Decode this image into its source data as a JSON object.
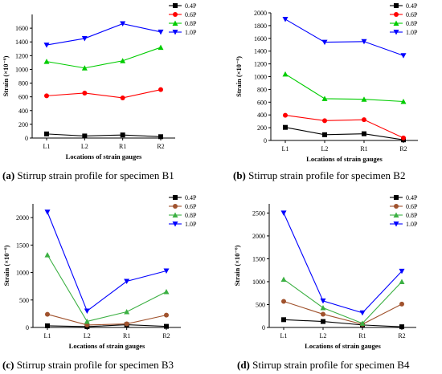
{
  "chart_data": [
    {
      "type": "line",
      "caption_letter": "(a)",
      "caption_text": " Stirrup strain profile for specimen B1",
      "xlabel": "Locations of strain gauges",
      "ylabel": "Strain (×10⁻⁶)",
      "categories": [
        "L1",
        "L2",
        "R1",
        "R2"
      ],
      "ylim": [
        0,
        1800
      ],
      "yticks": [
        0,
        200,
        400,
        600,
        800,
        1000,
        1200,
        1400,
        1600
      ],
      "legend_position": "top-right",
      "series": [
        {
          "name": "0.4P",
          "color": "#000000",
          "marker": "square",
          "values": [
            60,
            30,
            45,
            20
          ]
        },
        {
          "name": "0.6P",
          "color": "#ff0000",
          "marker": "circle",
          "values": [
            615,
            655,
            585,
            705
          ]
        },
        {
          "name": "0.8P",
          "color": "#00cc00",
          "marker": "triangle-up",
          "values": [
            1115,
            1020,
            1125,
            1320
          ]
        },
        {
          "name": "1.0P",
          "color": "#0000ff",
          "marker": "triangle-down",
          "values": [
            1355,
            1450,
            1665,
            1545
          ]
        }
      ]
    },
    {
      "type": "line",
      "caption_letter": "(b)",
      "caption_text": " Stirrup strain profile for specimen B2",
      "xlabel": "Locations of strain gauges",
      "ylabel": "Strain (×10⁻⁶)",
      "categories": [
        "L1",
        "L2",
        "R1",
        "R2"
      ],
      "ylim": [
        0,
        2000
      ],
      "yticks": [
        0,
        200,
        400,
        600,
        800,
        1000,
        1200,
        1400,
        1600,
        1800,
        2000
      ],
      "legend_position": "top-right",
      "series": [
        {
          "name": "0.4P",
          "color": "#000000",
          "marker": "square",
          "values": [
            205,
            90,
            105,
            10
          ]
        },
        {
          "name": "0.6P",
          "color": "#ff0000",
          "marker": "circle",
          "values": [
            395,
            310,
            325,
            40
          ]
        },
        {
          "name": "0.8P",
          "color": "#00cc00",
          "marker": "triangle-up",
          "values": [
            1040,
            655,
            645,
            610
          ]
        },
        {
          "name": "1.0P",
          "color": "#0000ff",
          "marker": "triangle-down",
          "values": [
            1900,
            1540,
            1550,
            1330
          ]
        }
      ]
    },
    {
      "type": "line",
      "caption_letter": "(c)",
      "caption_text": " Stirrup strain profile for specimen B3",
      "xlabel": "Locations of strain gauges",
      "ylabel": "Strain (×10⁻⁶)",
      "categories": [
        "L1",
        "L2",
        "R1",
        "R2"
      ],
      "ylim": [
        0,
        2250
      ],
      "yticks": [
        0,
        500,
        1000,
        1500,
        2000
      ],
      "legend_position": "top-right",
      "series": [
        {
          "name": "0.4P",
          "color": "#000000",
          "marker": "square",
          "values": [
            30,
            15,
            50,
            20
          ]
        },
        {
          "name": "0.6P",
          "color": "#a0522d",
          "marker": "circle",
          "values": [
            240,
            45,
            65,
            225
          ]
        },
        {
          "name": "0.8P",
          "color": "#3cb043",
          "marker": "triangle-up",
          "values": [
            1320,
            110,
            285,
            650
          ]
        },
        {
          "name": "1.0P",
          "color": "#0000ff",
          "marker": "triangle-down",
          "values": [
            2100,
            300,
            840,
            1030
          ]
        }
      ]
    },
    {
      "type": "line",
      "caption_letter": "(d)",
      "caption_text": " Stirrup strain profile for specimen B4",
      "xlabel": "Locations of strain gauges",
      "ylabel": "Strain (×10⁻⁶)",
      "categories": [
        "L1",
        "L2",
        "R1",
        "R2"
      ],
      "ylim": [
        0,
        2700
      ],
      "yticks": [
        0,
        500,
        1000,
        1500,
        2000,
        2500
      ],
      "legend_position": "top-right",
      "series": [
        {
          "name": "0.4P",
          "color": "#000000",
          "marker": "square",
          "values": [
            170,
            130,
            55,
            15
          ]
        },
        {
          "name": "0.6P",
          "color": "#a0522d",
          "marker": "circle",
          "values": [
            570,
            290,
            70,
            510
          ]
        },
        {
          "name": "0.8P",
          "color": "#3cb043",
          "marker": "triangle-up",
          "values": [
            1050,
            430,
            90,
            1000
          ]
        },
        {
          "name": "1.0P",
          "color": "#0000ff",
          "marker": "triangle-down",
          "values": [
            2500,
            580,
            320,
            1230
          ]
        }
      ]
    }
  ]
}
